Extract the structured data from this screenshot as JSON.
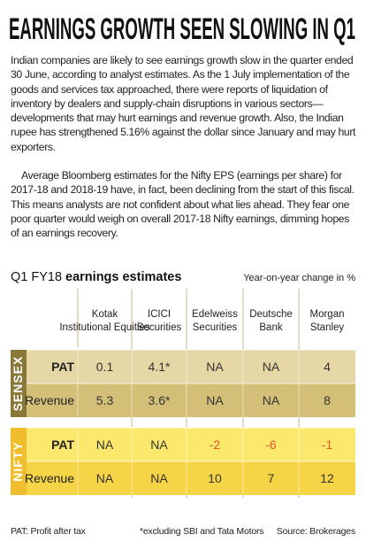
{
  "header": {
    "title": "EARNINGS GROWTH SEEN SLOWING IN Q1"
  },
  "paragraphs": [
    "Indian companies are likely to see earnings growth slow in the quarter ended 30 June, according to analyst estimates. As the 1 July implementation of the goods and services tax approached, there were reports of liquidation of inventory by dealers and supply-chain disruptions in various sectors—developments that may hurt earnings and revenue growth. Also, the Indian rupee has strengthened 5.16% against the dollar since January and may hurt exporters.",
    "Average Bloomberg estimates for the Nifty EPS (earnings per share) for 2017-18 and 2018-19 have, in fact, been declining from the start of this fiscal. This means analysts are not confident about what lies ahead. They fear one poor quarter would weigh on overall 2017-18 Nifty earnings, dimming hopes of an earnings recovery."
  ],
  "table": {
    "title_prefix": "Q1 FY18",
    "title_main": "earnings estimates",
    "unit_note": "Year-on-year change in %",
    "columns": [
      "Kotak Institutional Equities",
      "ICICI Securities",
      "Edelweiss Securities",
      "Deutsche Bank",
      "Morgan Stanley"
    ],
    "groups": [
      {
        "name": "SENSEX",
        "rows": [
          {
            "label": "PAT",
            "cells": [
              "0.1",
              "4.1*",
              "NA",
              "NA",
              "4"
            ]
          },
          {
            "label": "Revenue",
            "cells": [
              "5.3",
              "3.6*",
              "NA",
              "NA",
              "8"
            ]
          }
        ]
      },
      {
        "name": "NIFTY",
        "rows": [
          {
            "label": "PAT",
            "cells": [
              "NA",
              "NA",
              "-2",
              "-6",
              "-1"
            ]
          },
          {
            "label": "Revenue",
            "cells": [
              "NA",
              "NA",
              "10",
              "7",
              "12"
            ]
          }
        ]
      }
    ]
  },
  "footer": {
    "left": "PAT: Profit after tax",
    "middle": "*excluding SBI and Tata Motors",
    "right": "Source: Brokerages"
  }
}
